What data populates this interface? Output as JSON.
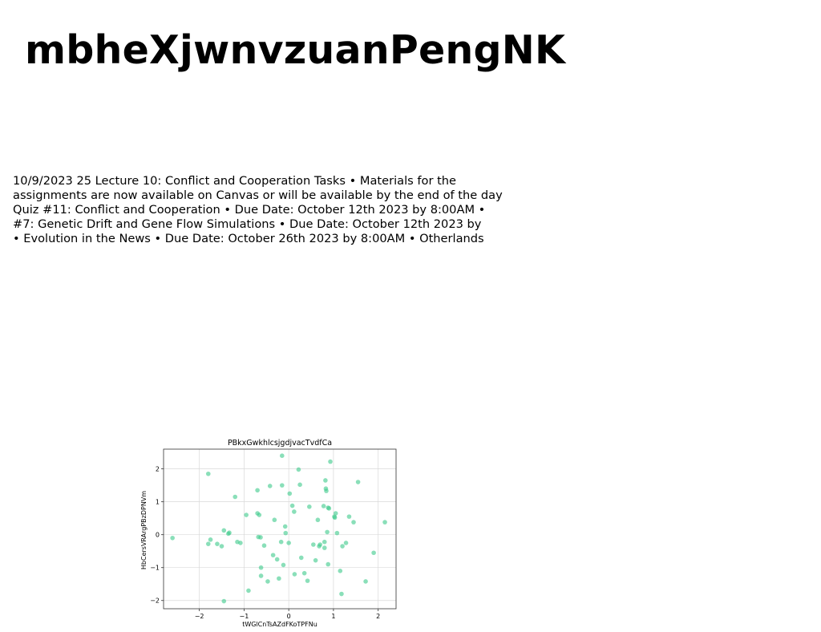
{
  "document": {
    "title": "mbheXjwnvzuanPengNK",
    "body_lines": [
      "10/9/2023 25 Lecture 10: Conflict and Cooperation Tasks • Materials for the",
      "assignments are now available on Canvas or will be available by the end of the day",
      "Quiz #11: Conflict and Cooperation • Due Date: October 12th 2023 by 8:00AM •",
      "#7: Genetic Drift and Gene Flow Simulations • Due Date: October 12th 2023 by",
      "• Evolution in the News • Due Date: October 26th 2023 by 8:00AM • Otherlands"
    ]
  },
  "chart_data": {
    "type": "scatter",
    "title": "PBkxGwkhlcsjgdjvacTvdfCa",
    "xlabel": "tWGlCnTsAZdFKoTPFNu",
    "ylabel": "HbCersVRArgPBzDPNVm",
    "xlim": [
      -2.8,
      2.4
    ],
    "ylim": [
      -2.25,
      2.6
    ],
    "xticks": [
      -2,
      -1,
      0,
      1,
      2
    ],
    "yticks": [
      -2,
      -1,
      0,
      1,
      2
    ],
    "xtick_labels": [
      "−2",
      "−1",
      "0",
      "1",
      "2"
    ],
    "ytick_labels": [
      "−2",
      "−1",
      "0",
      "1",
      "2"
    ],
    "grid": true,
    "point_color": "#3cc98a",
    "points": [
      [
        -2.6,
        -0.1
      ],
      [
        -1.8,
        1.85
      ],
      [
        -1.8,
        -0.28
      ],
      [
        -1.75,
        -0.15
      ],
      [
        -1.6,
        -0.28
      ],
      [
        -1.5,
        -0.35
      ],
      [
        -1.45,
        0.13
      ],
      [
        -1.45,
        -2.02
      ],
      [
        -1.35,
        0.03
      ],
      [
        -1.33,
        0.06
      ],
      [
        -1.2,
        1.15
      ],
      [
        -1.15,
        -0.22
      ],
      [
        -1.08,
        -0.25
      ],
      [
        -0.95,
        0.6
      ],
      [
        -0.9,
        -1.7
      ],
      [
        -0.7,
        0.65
      ],
      [
        -0.7,
        1.35
      ],
      [
        -0.68,
        -0.07
      ],
      [
        -0.66,
        0.6
      ],
      [
        -0.63,
        -0.08
      ],
      [
        -0.62,
        -1.0
      ],
      [
        -0.62,
        -1.25
      ],
      [
        -0.55,
        -0.33
      ],
      [
        -0.47,
        -1.42
      ],
      [
        -0.42,
        1.48
      ],
      [
        -0.35,
        -0.62
      ],
      [
        -0.32,
        0.45
      ],
      [
        -0.26,
        -0.75
      ],
      [
        -0.22,
        -1.33
      ],
      [
        -0.17,
        -0.22
      ],
      [
        -0.15,
        2.4
      ],
      [
        -0.15,
        1.5
      ],
      [
        -0.12,
        -0.92
      ],
      [
        -0.08,
        0.25
      ],
      [
        -0.07,
        0.05
      ],
      [
        0.0,
        -0.25
      ],
      [
        0.02,
        1.25
      ],
      [
        0.08,
        0.88
      ],
      [
        0.12,
        0.7
      ],
      [
        0.13,
        -1.2
      ],
      [
        0.22,
        1.98
      ],
      [
        0.25,
        1.52
      ],
      [
        0.28,
        -0.7
      ],
      [
        0.35,
        -1.17
      ],
      [
        0.42,
        -1.4
      ],
      [
        0.46,
        0.85
      ],
      [
        0.55,
        -0.3
      ],
      [
        0.6,
        -0.78
      ],
      [
        0.65,
        0.45
      ],
      [
        0.68,
        -0.35
      ],
      [
        0.7,
        -0.3
      ],
      [
        0.78,
        0.87
      ],
      [
        0.8,
        -0.4
      ],
      [
        0.8,
        -0.22
      ],
      [
        0.82,
        1.65
      ],
      [
        0.83,
        1.4
      ],
      [
        0.84,
        1.33
      ],
      [
        0.86,
        0.08
      ],
      [
        0.88,
        0.82
      ],
      [
        0.88,
        -0.9
      ],
      [
        0.9,
        0.8
      ],
      [
        0.93,
        2.22
      ],
      [
        1.02,
        0.55
      ],
      [
        1.03,
        0.52
      ],
      [
        1.05,
        0.65
      ],
      [
        1.08,
        0.05
      ],
      [
        1.15,
        -1.1
      ],
      [
        1.18,
        -1.8
      ],
      [
        1.2,
        -0.35
      ],
      [
        1.28,
        -0.25
      ],
      [
        1.35,
        0.55
      ],
      [
        1.45,
        0.38
      ],
      [
        1.55,
        1.6
      ],
      [
        1.72,
        -1.42
      ],
      [
        1.9,
        -0.55
      ],
      [
        2.15,
        0.38
      ]
    ]
  }
}
